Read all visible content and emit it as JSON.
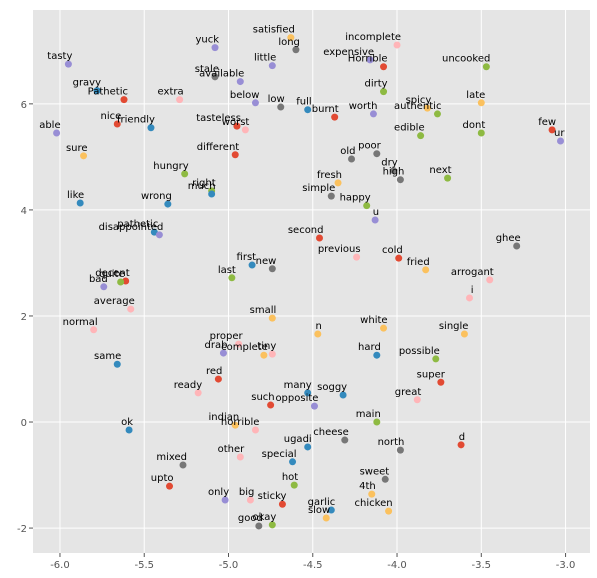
{
  "chart_data": {
    "type": "scatter",
    "labels": [
      "tasty",
      "yuck",
      "satisfied",
      "long",
      "incomplete",
      "expensive",
      "Horrible",
      "uncooked",
      "gravy",
      "Pathetic",
      "stale",
      "available",
      "little",
      "dirty",
      "extra",
      "below",
      "low",
      "full",
      "late",
      "spicy",
      "authentic",
      "worth",
      "burnt",
      "nice",
      "friendly",
      "tasteless",
      "worst",
      "able",
      "few",
      "ur",
      "edible",
      "dont",
      "poor",
      "old",
      "different",
      "sure",
      "dry",
      "high",
      "next",
      "hungry",
      "fresh",
      "right",
      "much",
      "simple",
      "happy",
      "like",
      "wrong",
      "u",
      "pathetic",
      "disappointed",
      "second",
      "ghee",
      "previous",
      "cold",
      "first",
      "new",
      "fried",
      "arrogant",
      "decent",
      "quite",
      "bad",
      "last",
      "i",
      "average",
      "small",
      "normal",
      "n",
      "white",
      "single",
      "proper",
      "drab",
      "tiny",
      "complete",
      "hard",
      "possible",
      "same",
      "red",
      "super",
      "ready",
      "many",
      "soggy",
      "great",
      "such",
      "opposite",
      "main",
      "ok",
      "indian",
      "horrible",
      "cheese",
      "d",
      "ugadi",
      "north",
      "other",
      "special",
      "mixed",
      "sweet",
      "upto",
      "hot",
      "4th",
      "only",
      "big",
      "sticky",
      "garlic",
      "chicken",
      "slow",
      "good",
      "okay"
    ],
    "x": [
      -5.95,
      -5.08,
      -4.63,
      -4.6,
      -4.0,
      -4.16,
      -4.08,
      -3.47,
      -5.78,
      -5.62,
      -5.08,
      -4.93,
      -4.74,
      -4.08,
      -5.29,
      -4.84,
      -4.69,
      -4.53,
      -3.5,
      -3.82,
      -3.76,
      -4.14,
      -4.37,
      -5.66,
      -5.46,
      -4.95,
      -4.9,
      -6.02,
      -3.08,
      -3.03,
      -3.86,
      -3.5,
      -4.12,
      -4.27,
      -4.96,
      -5.86,
      -4.02,
      -3.98,
      -3.7,
      -5.26,
      -4.35,
      -5.1,
      -5.1,
      -4.39,
      -4.18,
      -5.88,
      -5.36,
      -4.13,
      -5.44,
      -5.41,
      -4.46,
      -3.29,
      -4.24,
      -3.99,
      -4.86,
      -4.74,
      -3.83,
      -3.45,
      -5.61,
      -5.64,
      -5.74,
      -4.98,
      -3.57,
      -5.58,
      -4.74,
      -5.8,
      -4.47,
      -4.08,
      -3.6,
      -4.94,
      -5.03,
      -4.74,
      -4.79,
      -4.12,
      -3.77,
      -5.66,
      -5.06,
      -3.74,
      -5.18,
      -4.53,
      -4.32,
      -3.88,
      -4.75,
      -4.49,
      -4.12,
      -5.59,
      -4.96,
      -4.84,
      -4.31,
      -3.62,
      -4.53,
      -3.98,
      -4.93,
      -4.62,
      -5.27,
      -4.07,
      -5.35,
      -4.61,
      -4.15,
      -5.02,
      -4.87,
      -4.68,
      -4.39,
      -4.05,
      -4.42,
      -4.82,
      -4.74
    ],
    "y": [
      6.75,
      7.06,
      7.25,
      7.02,
      7.11,
      6.83,
      6.7,
      6.7,
      6.25,
      6.08,
      6.51,
      6.42,
      6.72,
      6.23,
      6.08,
      6.02,
      5.94,
      5.89,
      6.02,
      5.92,
      5.81,
      5.81,
      5.75,
      5.62,
      5.55,
      5.58,
      5.51,
      5.45,
      5.51,
      5.3,
      5.4,
      5.45,
      5.06,
      4.96,
      5.04,
      5.02,
      4.74,
      4.57,
      4.6,
      4.68,
      4.51,
      4.36,
      4.3,
      4.26,
      4.08,
      4.13,
      4.11,
      3.81,
      3.58,
      3.53,
      3.47,
      3.32,
      3.11,
      3.09,
      2.96,
      2.89,
      2.87,
      2.68,
      2.66,
      2.64,
      2.55,
      2.72,
      2.34,
      2.13,
      1.96,
      1.74,
      1.66,
      1.77,
      1.66,
      1.47,
      1.3,
      1.28,
      1.26,
      1.26,
      1.19,
      1.09,
      0.81,
      0.75,
      0.55,
      0.55,
      0.51,
      0.42,
      0.32,
      0.3,
      0,
      -0.15,
      -0.06,
      -0.15,
      -0.34,
      -0.43,
      -0.47,
      -0.53,
      -0.66,
      -0.75,
      -0.81,
      -1.08,
      -1.21,
      -1.19,
      -1.36,
      -1.47,
      -1.47,
      -1.55,
      -1.66,
      -1.68,
      -1.81,
      -1.96,
      -1.94
    ],
    "colors": [
      "#988ED5",
      "#988ED5",
      "#FBC15E",
      "#777777",
      "#FFB5B8",
      "#988ED5",
      "#E24A33",
      "#8EBA42",
      "#348ABD",
      "#E24A33",
      "#777777",
      "#988ED5",
      "#988ED5",
      "#8EBA42",
      "#FFB5B8",
      "#988ED5",
      "#777777",
      "#348ABD",
      "#FBC15E",
      "#FBC15E",
      "#8EBA42",
      "#988ED5",
      "#E24A33",
      "#E24A33",
      "#348ABD",
      "#E24A33",
      "#FFB5B8",
      "#988ED5",
      "#E24A33",
      "#988ED5",
      "#8EBA42",
      "#8EBA42",
      "#777777",
      "#777777",
      "#E24A33",
      "#FBC15E",
      "#777777",
      "#777777",
      "#8EBA42",
      "#8EBA42",
      "#FBC15E",
      "#8EBA42",
      "#348ABD",
      "#777777",
      "#8EBA42",
      "#348ABD",
      "#348ABD",
      "#988ED5",
      "#348ABD",
      "#988ED5",
      "#E24A33",
      "#777777",
      "#FFB5B8",
      "#E24A33",
      "#348ABD",
      "#777777",
      "#FBC15E",
      "#FFB5B8",
      "#E24A33",
      "#8EBA42",
      "#988ED5",
      "#8EBA42",
      "#FFB5B8",
      "#FFB5B8",
      "#FBC15E",
      "#FFB5B8",
      "#FBC15E",
      "#FBC15E",
      "#FBC15E",
      "#FFB5B8",
      "#988ED5",
      "#FFB5B8",
      "#FBC15E",
      "#348ABD",
      "#8EBA42",
      "#348ABD",
      "#E24A33",
      "#E24A33",
      "#FFB5B8",
      "#348ABD",
      "#348ABD",
      "#FFB5B8",
      "#E24A33",
      "#988ED5",
      "#8EBA42",
      "#348ABD",
      "#FBC15E",
      "#FFB5B8",
      "#777777",
      "#E24A33",
      "#348ABD",
      "#777777",
      "#FFB5B8",
      "#348ABD",
      "#777777",
      "#777777",
      "#E24A33",
      "#8EBA42",
      "#FBC15E",
      "#988ED5",
      "#FFB5B8",
      "#E24A33",
      "#348ABD",
      "#FBC15E",
      "#FBC15E",
      "#777777",
      "#8EBA42"
    ],
    "xlim": [
      -6.16,
      -2.855
    ],
    "ylim": [
      -2.47,
      7.77
    ],
    "xticks": [
      {
        "value": -6,
        "label": "-6.0"
      },
      {
        "value": -5.5,
        "label": "-5.5"
      },
      {
        "value": -5,
        "label": "-5.0"
      },
      {
        "value": -4.5,
        "label": "-4.5"
      },
      {
        "value": -4,
        "label": "-4.0"
      },
      {
        "value": -3.5,
        "label": "-3.5"
      },
      {
        "value": -3,
        "label": "-3.0"
      }
    ],
    "yticks": [
      -2,
      0,
      2,
      4,
      6
    ],
    "grid": true
  }
}
